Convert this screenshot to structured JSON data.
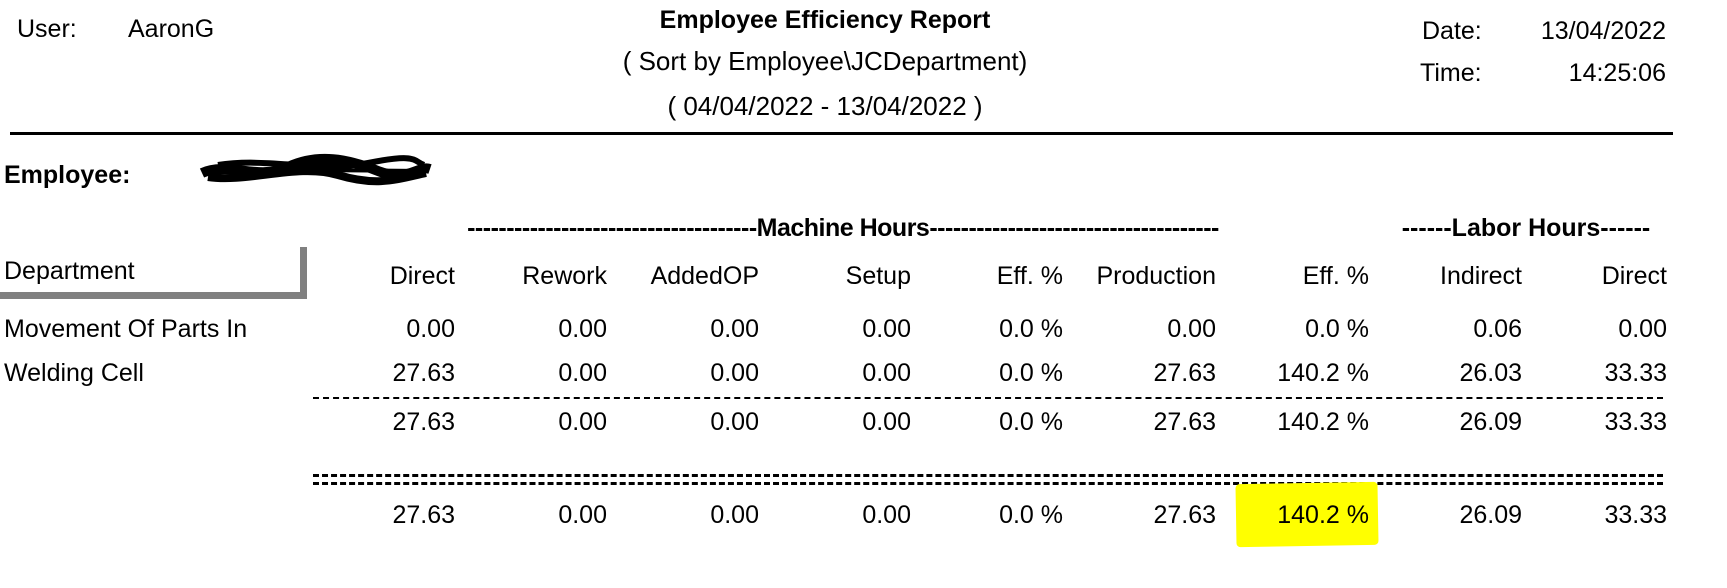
{
  "header": {
    "user_label": "User:",
    "user_value": "AaronG",
    "title": "Employee Efficiency Report",
    "sort_line": "( Sort by  Employee\\JCDepartment)",
    "date_range": "( 04/04/2022 - 13/04/2022 )",
    "date_label": "Date:",
    "date_value": "13/04/2022",
    "time_label": "Time:",
    "time_value": "14:25:06"
  },
  "employee": {
    "label": "Employee:"
  },
  "groups": {
    "machine_hours": "-------------------------------------Machine Hours-------------------------------------",
    "labor_hours": "------Labor Hours------"
  },
  "columns": {
    "department": "Department",
    "direct": "Direct",
    "rework": "Rework",
    "addedop": "AddedOP",
    "setup": "Setup",
    "eff1": "Eff. %",
    "production": "Production",
    "eff2": "Eff. %",
    "indirect": "Indirect",
    "labor_direct": "Direct"
  },
  "rows": [
    {
      "department": "Movement Of Parts In",
      "direct": "0.00",
      "rework": "0.00",
      "addedop": "0.00",
      "setup": "0.00",
      "eff1": "0.0 %",
      "production": "0.00",
      "eff2": "0.0 %",
      "indirect": "0.06",
      "labor_direct": "0.00"
    },
    {
      "department": "Welding Cell",
      "direct": "27.63",
      "rework": "0.00",
      "addedop": "0.00",
      "setup": "0.00",
      "eff1": "0.0 %",
      "production": "27.63",
      "eff2": "140.2 %",
      "indirect": "26.03",
      "labor_direct": "33.33"
    }
  ],
  "subtotal": {
    "direct": "27.63",
    "rework": "0.00",
    "addedop": "0.00",
    "setup": "0.00",
    "eff1": "0.0 %",
    "production": "27.63",
    "eff2": "140.2 %",
    "indirect": "26.09",
    "labor_direct": "33.33"
  },
  "grand_total": {
    "direct": "27.63",
    "rework": "0.00",
    "addedop": "0.00",
    "setup": "0.00",
    "eff1": "0.0 %",
    "production": "27.63",
    "eff2": "140.2 %",
    "indirect": "26.09",
    "labor_direct": "33.33"
  },
  "colors": {
    "highlight": "#ffff00",
    "rule": "#000000",
    "dept_frame": "#808080"
  }
}
